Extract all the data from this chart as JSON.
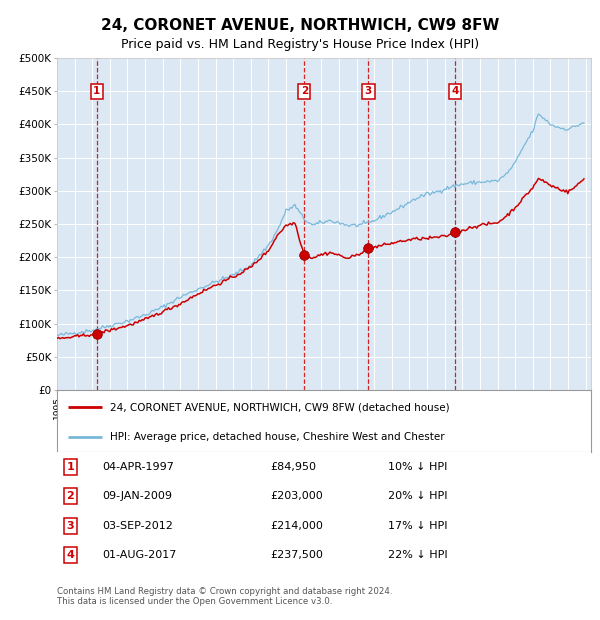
{
  "title": "24, CORONET AVENUE, NORTHWICH, CW9 8FW",
  "subtitle": "Price paid vs. HM Land Registry's House Price Index (HPI)",
  "background_color": "#ffffff",
  "plot_bg_color": "#dce9f5",
  "hpi_color": "#7ab8d9",
  "price_color": "#cc0000",
  "ylim": [
    0,
    500000
  ],
  "yticks": [
    0,
    50000,
    100000,
    150000,
    200000,
    250000,
    300000,
    350000,
    400000,
    450000,
    500000
  ],
  "ytick_labels": [
    "£0",
    "£50K",
    "£100K",
    "£150K",
    "£200K",
    "£250K",
    "£300K",
    "£350K",
    "£400K",
    "£450K",
    "£500K"
  ],
  "purchases": [
    {
      "num": 1,
      "date_str": "04-APR-1997",
      "year": 1997.26,
      "price": 84950,
      "hpi_pct": "10% ↓ HPI"
    },
    {
      "num": 2,
      "date_str": "09-JAN-2009",
      "year": 2009.03,
      "price": 203000,
      "hpi_pct": "20% ↓ HPI"
    },
    {
      "num": 3,
      "date_str": "03-SEP-2012",
      "year": 2012.67,
      "price": 214000,
      "hpi_pct": "17% ↓ HPI"
    },
    {
      "num": 4,
      "date_str": "01-AUG-2017",
      "year": 2017.58,
      "price": 237500,
      "hpi_pct": "22% ↓ HPI"
    }
  ],
  "legend_label_price": "24, CORONET AVENUE, NORTHWICH, CW9 8FW (detached house)",
  "legend_label_hpi": "HPI: Average price, detached house, Cheshire West and Chester",
  "footer": "Contains HM Land Registry data © Crown copyright and database right 2024.\nThis data is licensed under the Open Government Licence v3.0.",
  "xlim_start": 1995.3,
  "xlim_end": 2025.3,
  "hpi_anchors": [
    [
      1995.0,
      82000
    ],
    [
      1996.0,
      86000
    ],
    [
      1997.0,
      90000
    ],
    [
      1998.0,
      97000
    ],
    [
      1999.0,
      104000
    ],
    [
      2000.0,
      113000
    ],
    [
      2001.0,
      125000
    ],
    [
      2002.0,
      140000
    ],
    [
      2003.0,
      152000
    ],
    [
      2004.0,
      163000
    ],
    [
      2005.0,
      173000
    ],
    [
      2006.0,
      188000
    ],
    [
      2007.0,
      218000
    ],
    [
      2007.5,
      240000
    ],
    [
      2008.0,
      270000
    ],
    [
      2008.5,
      278000
    ],
    [
      2009.0,
      258000
    ],
    [
      2009.5,
      248000
    ],
    [
      2010.0,
      252000
    ],
    [
      2010.5,
      255000
    ],
    [
      2011.0,
      252000
    ],
    [
      2011.5,
      248000
    ],
    [
      2012.0,
      248000
    ],
    [
      2012.5,
      250000
    ],
    [
      2013.0,
      255000
    ],
    [
      2013.5,
      262000
    ],
    [
      2014.0,
      268000
    ],
    [
      2014.5,
      275000
    ],
    [
      2015.0,
      283000
    ],
    [
      2015.5,
      290000
    ],
    [
      2016.0,
      295000
    ],
    [
      2016.5,
      298000
    ],
    [
      2017.0,
      303000
    ],
    [
      2017.5,
      307000
    ],
    [
      2018.0,
      310000
    ],
    [
      2018.5,
      312000
    ],
    [
      2019.0,
      313000
    ],
    [
      2019.5,
      314000
    ],
    [
      2020.0,
      315000
    ],
    [
      2020.5,
      325000
    ],
    [
      2021.0,
      342000
    ],
    [
      2021.5,
      368000
    ],
    [
      2022.0,
      390000
    ],
    [
      2022.3,
      415000
    ],
    [
      2022.6,
      410000
    ],
    [
      2023.0,
      400000
    ],
    [
      2023.5,
      395000
    ],
    [
      2024.0,
      393000
    ],
    [
      2024.5,
      398000
    ],
    [
      2024.9,
      403000
    ]
  ],
  "price_anchors": [
    [
      1995.0,
      77000
    ],
    [
      1996.0,
      80000
    ],
    [
      1997.26,
      84950
    ],
    [
      1998.0,
      90000
    ],
    [
      1999.0,
      97000
    ],
    [
      2000.0,
      106000
    ],
    [
      2001.0,
      118000
    ],
    [
      2002.0,
      130000
    ],
    [
      2003.0,
      145000
    ],
    [
      2004.0,
      158000
    ],
    [
      2005.0,
      170000
    ],
    [
      2006.0,
      185000
    ],
    [
      2007.0,
      210000
    ],
    [
      2007.5,
      233000
    ],
    [
      2008.0,
      248000
    ],
    [
      2008.5,
      252000
    ],
    [
      2009.03,
      203000
    ],
    [
      2009.5,
      199000
    ],
    [
      2010.0,
      204000
    ],
    [
      2010.5,
      207000
    ],
    [
      2011.0,
      203000
    ],
    [
      2011.5,
      198000
    ],
    [
      2012.0,
      203000
    ],
    [
      2012.67,
      214000
    ],
    [
      2013.0,
      215000
    ],
    [
      2013.5,
      218000
    ],
    [
      2014.0,
      221000
    ],
    [
      2014.5,
      224000
    ],
    [
      2015.0,
      226000
    ],
    [
      2015.5,
      228000
    ],
    [
      2016.0,
      228000
    ],
    [
      2016.5,
      230000
    ],
    [
      2017.0,
      231000
    ],
    [
      2017.58,
      237500
    ],
    [
      2018.0,
      240000
    ],
    [
      2018.5,
      245000
    ],
    [
      2019.0,
      248000
    ],
    [
      2019.5,
      250000
    ],
    [
      2020.0,
      252000
    ],
    [
      2020.5,
      262000
    ],
    [
      2021.0,
      275000
    ],
    [
      2021.5,
      290000
    ],
    [
      2022.0,
      305000
    ],
    [
      2022.3,
      318000
    ],
    [
      2022.6,
      315000
    ],
    [
      2023.0,
      308000
    ],
    [
      2023.5,
      303000
    ],
    [
      2024.0,
      298000
    ],
    [
      2024.5,
      308000
    ],
    [
      2024.9,
      318000
    ]
  ]
}
